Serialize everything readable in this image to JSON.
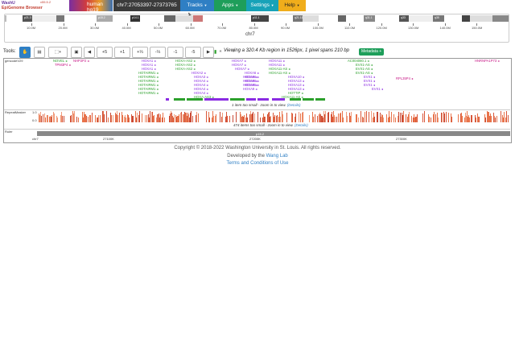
{
  "nav": {
    "logo_line1": "WashU",
    "logo_line2": "EpiGenome Browser",
    "version": "v55.5.2",
    "genome": "human hg19",
    "region": "chr7:27053397-27373765",
    "tracks": "Tracks",
    "apps": "Apps",
    "settings": "Settings",
    "help": "Help"
  },
  "ideogram": {
    "chromosome": "chr7",
    "bands": [
      "p21.3",
      "p15.2",
      "p14.1",
      "p11.1",
      "q21.11",
      "q22.1",
      "q31.1",
      "q33",
      "q35"
    ],
    "scale": [
      "10.0M",
      "20.0M",
      "30.0M",
      "40.0M",
      "50.0M",
      "60.0M",
      "70.0M",
      "80.0M",
      "90.0M",
      "100.0M",
      "110.0M",
      "120.0M",
      "130.0M",
      "140.0M",
      "150.0M"
    ]
  },
  "tools": {
    "label": "Tools:",
    "buttons": [
      "◀",
      "+5",
      "+1",
      "+⅓",
      "-⅓",
      "-1",
      "-5",
      "▶",
      "«",
      "»"
    ],
    "viewing_text": "Viewing a 320.4 Kb region in 1526px, 1 pixel spans 210 bp",
    "metadata": "Metadata +"
  },
  "tracks": {
    "gene_track_label": "gencodeV29",
    "repeat_track_label": "RepeatMasker",
    "ruler_label": "Ruler",
    "repeat_scale_top": "1.0",
    "repeat_scale_bottom": "0.0",
    "genes_col0": [
      {
        "name": "NOVEL",
        "color": "green"
      },
      {
        "name": "TPM3P4",
        "color": "magenta"
      }
    ],
    "genes_col1": [
      {
        "name": "NHP2P2",
        "color": "magenta"
      }
    ],
    "genes_hoxa1": [
      "HOXA1",
      "HOXA1",
      "HOXA1",
      "HOTAIRM1",
      "HOTAIRM1",
      "HOTAIRM1",
      "HOTAIRM1",
      "HOTAIRM1",
      "HOTAIRM1"
    ],
    "genes_hoxa2": [
      "HOXA-AS2",
      "HOXA-AS2",
      "HOXA-AS2",
      "HOXA2",
      "HOXA3",
      "HOXA4",
      "HOXA4",
      "HOXA4",
      "HOXA4",
      "HOXA-AS3"
    ],
    "genes_hoxa7": [
      "HOXA7",
      "HOXA7",
      "HOXA7",
      "HOXA6",
      "HOXA6",
      "HOXA6",
      "HOXA5"
    ],
    "genes_hoxa11": [
      "HOXA11",
      "HOXA11",
      "HOXA11-AS",
      "HOXA11-AS",
      "HOXA10",
      "HOXA13",
      "HOXA13",
      "HOXA13",
      "HOTTIP",
      "HOXA11-AS"
    ],
    "genes_evx": [
      "AC004080.1",
      "EVX1-AS",
      "EVX1-AS",
      "EVX1-AS",
      "EVX1",
      "EVX1",
      "EVX1",
      "EVX1"
    ],
    "gene_rpl": "RPL35P4",
    "gene_hnrnp": "HNRNPA1P73",
    "genes_hoxa9": [
      "HOXA9",
      "HOXA9",
      "HOXA9",
      "HOXA9"
    ],
    "gene_msg": "1 item too small - zoom in to view.",
    "gene_msg_link": "(Details)",
    "repeat_msg": "474 items too small - zoom in to view.",
    "repeat_msg_link": "(Details)",
    "ruler_ticks": [
      "chr7",
      "27100K",
      "27200K",
      "27300K"
    ],
    "ruler_band": "p15.2"
  },
  "footer": {
    "copyright": "Copyright © 2018-2022 Washington University in St. Louis. All rights reserved.",
    "developed": "Developed by the",
    "lab": "Wang Lab",
    "terms": "Terms and Conditions of Use"
  },
  "colors": {
    "gene_purple": "#8a2be2",
    "gene_green": "#2ca02c",
    "repeat_orange": "#e8734a",
    "nav_blue": "#2f7fc4"
  }
}
